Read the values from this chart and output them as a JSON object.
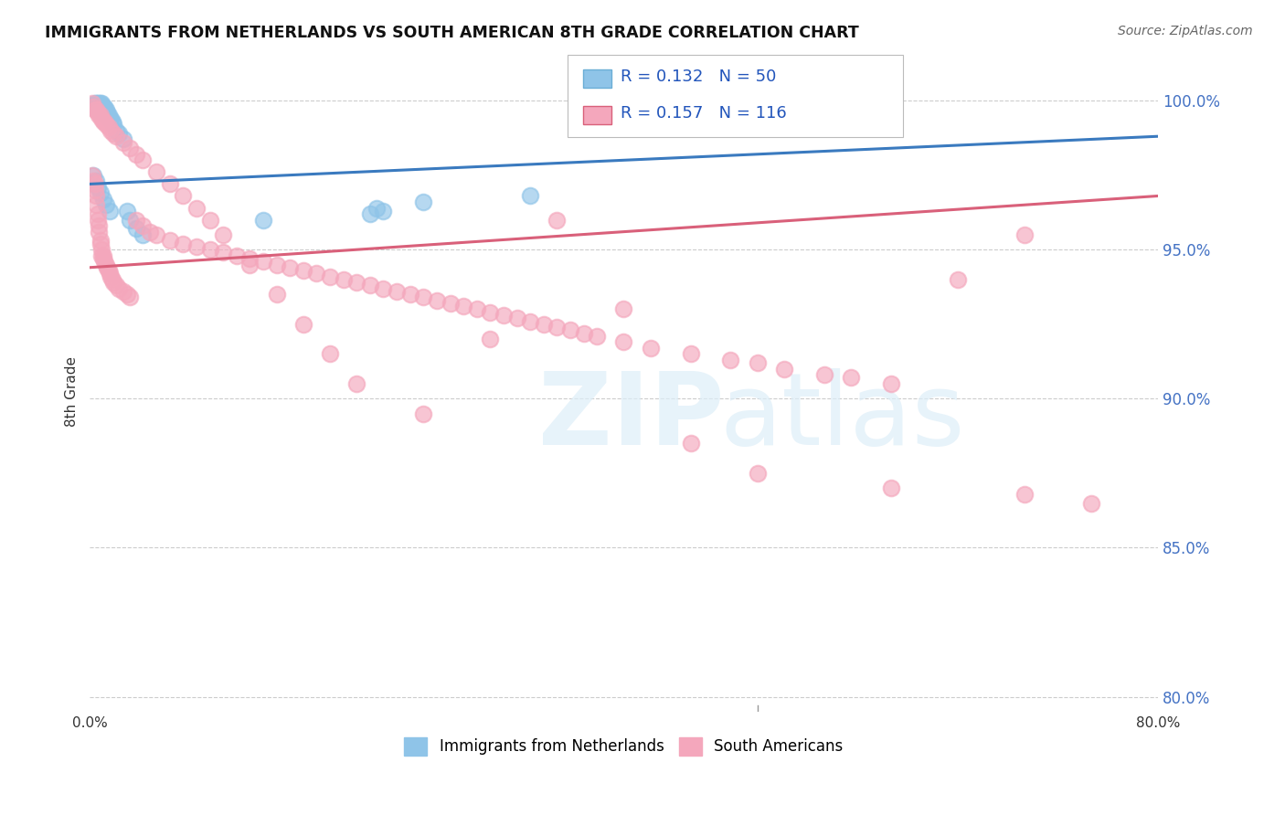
{
  "title": "IMMIGRANTS FROM NETHERLANDS VS SOUTH AMERICAN 8TH GRADE CORRELATION CHART",
  "source": "Source: ZipAtlas.com",
  "ylabel": "8th Grade",
  "xlim": [
    0.0,
    0.8
  ],
  "ylim": [
    0.795,
    1.01
  ],
  "ytick_vals": [
    0.8,
    0.85,
    0.9,
    0.95,
    1.0
  ],
  "ytick_labels": [
    "80.0%",
    "85.0%",
    "90.0%",
    "95.0%",
    "100.0%"
  ],
  "blue_color": "#8fc4e8",
  "pink_color": "#f4a7bc",
  "blue_line_color": "#3a7abf",
  "pink_line_color": "#d9607a",
  "blue_line": [
    [
      0.0,
      0.972
    ],
    [
      0.8,
      0.988
    ]
  ],
  "pink_line": [
    [
      0.0,
      0.944
    ],
    [
      0.8,
      0.968
    ]
  ],
  "legend_label_blue": "Immigrants from Netherlands",
  "legend_label_pink": "South Americans",
  "watermark_zip": "ZIP",
  "watermark_atlas": "atlas",
  "blue_x": [
    0.003,
    0.004,
    0.005,
    0.005,
    0.006,
    0.006,
    0.007,
    0.007,
    0.007,
    0.008,
    0.008,
    0.008,
    0.009,
    0.009,
    0.009,
    0.01,
    0.01,
    0.01,
    0.011,
    0.011,
    0.011,
    0.012,
    0.012,
    0.013,
    0.013,
    0.014,
    0.015,
    0.016,
    0.017,
    0.018,
    0.02,
    0.022,
    0.025,
    0.028,
    0.03,
    0.035,
    0.04,
    0.003,
    0.005,
    0.006,
    0.008,
    0.01,
    0.012,
    0.015,
    0.13,
    0.21,
    0.215,
    0.22,
    0.25,
    0.33
  ],
  "blue_y": [
    0.998,
    0.999,
    0.999,
    0.998,
    0.999,
    0.998,
    0.999,
    0.998,
    0.997,
    0.998,
    0.997,
    0.999,
    0.997,
    0.998,
    0.999,
    0.998,
    0.997,
    0.996,
    0.997,
    0.996,
    0.998,
    0.996,
    0.997,
    0.995,
    0.996,
    0.995,
    0.994,
    0.994,
    0.993,
    0.992,
    0.99,
    0.989,
    0.987,
    0.963,
    0.96,
    0.957,
    0.955,
    0.975,
    0.973,
    0.971,
    0.969,
    0.967,
    0.965,
    0.963,
    0.96,
    0.962,
    0.964,
    0.963,
    0.966,
    0.968
  ],
  "pink_x": [
    0.002,
    0.003,
    0.004,
    0.004,
    0.005,
    0.005,
    0.006,
    0.006,
    0.007,
    0.007,
    0.008,
    0.008,
    0.009,
    0.009,
    0.01,
    0.01,
    0.011,
    0.012,
    0.013,
    0.014,
    0.015,
    0.016,
    0.017,
    0.018,
    0.02,
    0.022,
    0.025,
    0.028,
    0.03,
    0.035,
    0.04,
    0.045,
    0.05,
    0.06,
    0.07,
    0.08,
    0.09,
    0.1,
    0.11,
    0.12,
    0.13,
    0.14,
    0.15,
    0.16,
    0.17,
    0.18,
    0.19,
    0.2,
    0.21,
    0.22,
    0.23,
    0.24,
    0.25,
    0.26,
    0.27,
    0.28,
    0.29,
    0.3,
    0.31,
    0.32,
    0.33,
    0.34,
    0.35,
    0.36,
    0.37,
    0.38,
    0.4,
    0.42,
    0.45,
    0.48,
    0.5,
    0.52,
    0.55,
    0.57,
    0.6,
    0.65,
    0.7,
    0.002,
    0.003,
    0.004,
    0.005,
    0.006,
    0.007,
    0.008,
    0.009,
    0.01,
    0.011,
    0.012,
    0.014,
    0.016,
    0.018,
    0.02,
    0.025,
    0.03,
    0.035,
    0.04,
    0.05,
    0.06,
    0.07,
    0.08,
    0.09,
    0.1,
    0.12,
    0.14,
    0.16,
    0.18,
    0.2,
    0.25,
    0.3,
    0.35,
    0.4,
    0.45,
    0.5,
    0.6,
    0.7,
    0.75
  ],
  "pink_y": [
    0.975,
    0.973,
    0.972,
    0.97,
    0.968,
    0.965,
    0.962,
    0.96,
    0.958,
    0.956,
    0.953,
    0.952,
    0.95,
    0.948,
    0.948,
    0.947,
    0.946,
    0.945,
    0.944,
    0.943,
    0.942,
    0.941,
    0.94,
    0.939,
    0.938,
    0.937,
    0.936,
    0.935,
    0.934,
    0.96,
    0.958,
    0.956,
    0.955,
    0.953,
    0.952,
    0.951,
    0.95,
    0.949,
    0.948,
    0.947,
    0.946,
    0.945,
    0.944,
    0.943,
    0.942,
    0.941,
    0.94,
    0.939,
    0.938,
    0.937,
    0.936,
    0.935,
    0.934,
    0.933,
    0.932,
    0.931,
    0.93,
    0.929,
    0.928,
    0.927,
    0.926,
    0.925,
    0.924,
    0.923,
    0.922,
    0.921,
    0.919,
    0.917,
    0.915,
    0.913,
    0.912,
    0.91,
    0.908,
    0.907,
    0.905,
    0.94,
    0.955,
    0.999,
    0.998,
    0.997,
    0.997,
    0.996,
    0.995,
    0.995,
    0.994,
    0.993,
    0.993,
    0.992,
    0.991,
    0.99,
    0.989,
    0.988,
    0.986,
    0.984,
    0.982,
    0.98,
    0.976,
    0.972,
    0.968,
    0.964,
    0.96,
    0.955,
    0.945,
    0.935,
    0.925,
    0.915,
    0.905,
    0.895,
    0.92,
    0.96,
    0.93,
    0.885,
    0.875,
    0.87,
    0.868,
    0.865
  ]
}
